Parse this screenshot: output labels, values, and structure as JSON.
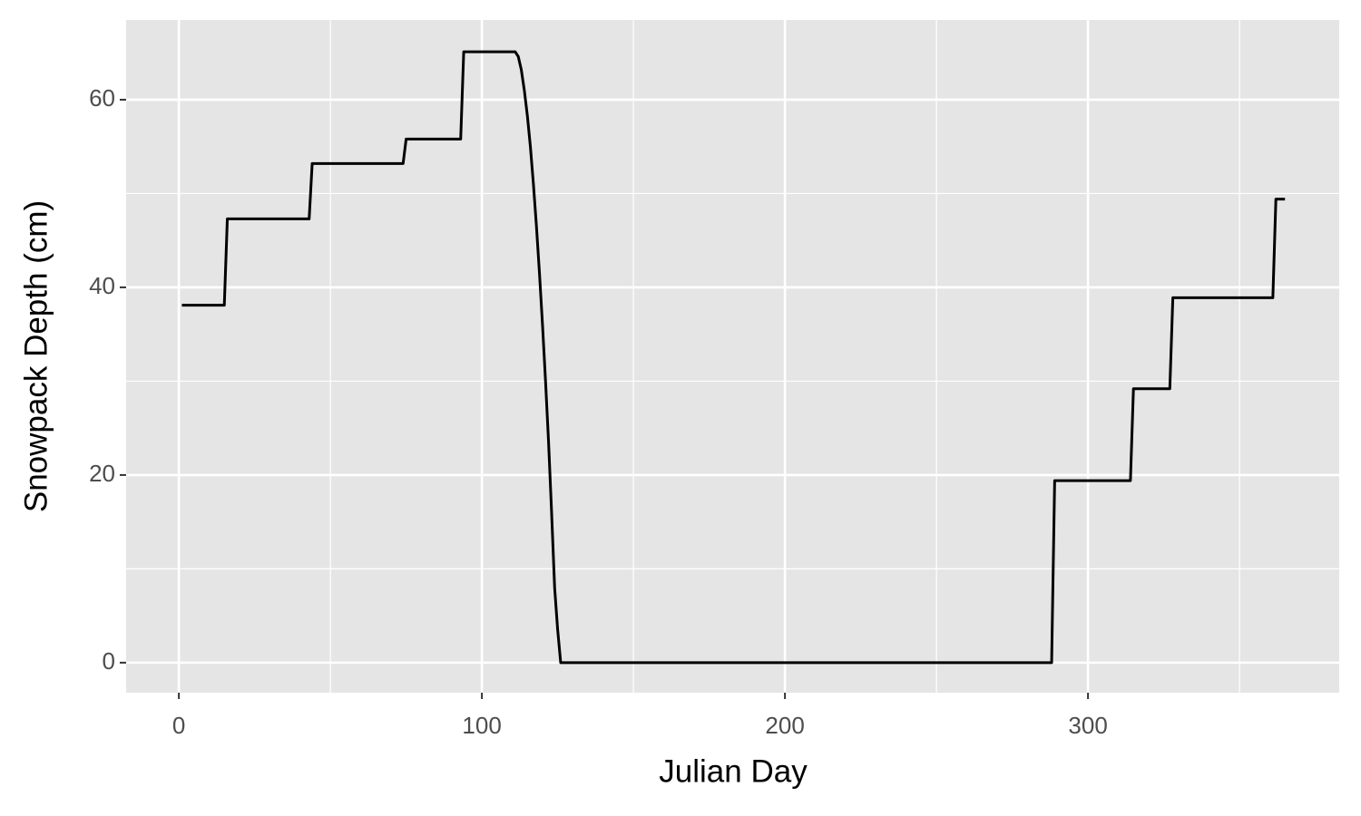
{
  "chart_data": {
    "type": "line",
    "x_label": "Julian Day",
    "y_label": "Snowpack Depth (cm)",
    "x": [
      1,
      15,
      16,
      43,
      44,
      74,
      75,
      93,
      94,
      111,
      112,
      113,
      114,
      115,
      116,
      117,
      118,
      119,
      120,
      121,
      122,
      123,
      124,
      125,
      126,
      288,
      289,
      314,
      315,
      327,
      328,
      361,
      362,
      365
    ],
    "series": [
      {
        "name": "Snowpack Depth",
        "color": "#000000",
        "values": [
          38.1,
          38.1,
          47.3,
          47.3,
          53.2,
          53.2,
          55.8,
          55.8,
          65.1,
          65.1,
          64.6,
          63.2,
          61.0,
          58.3,
          55.0,
          51.0,
          46.5,
          41.5,
          36.0,
          30.0,
          23.5,
          16.0,
          8.0,
          3.5,
          0,
          0,
          19.4,
          19.4,
          29.2,
          29.2,
          38.9,
          38.9,
          49.4,
          49.4
        ]
      }
    ],
    "xlim": [
      -17.4,
      382.9
    ],
    "ylim": [
      -3.2,
      68.5
    ],
    "xticks": [
      0,
      100,
      200,
      300
    ],
    "yticks": [
      0,
      20,
      40,
      60
    ],
    "x_minor_grid": [
      50,
      150,
      250,
      350
    ],
    "y_minor_grid": [
      10,
      30,
      50
    ],
    "grid": true
  }
}
